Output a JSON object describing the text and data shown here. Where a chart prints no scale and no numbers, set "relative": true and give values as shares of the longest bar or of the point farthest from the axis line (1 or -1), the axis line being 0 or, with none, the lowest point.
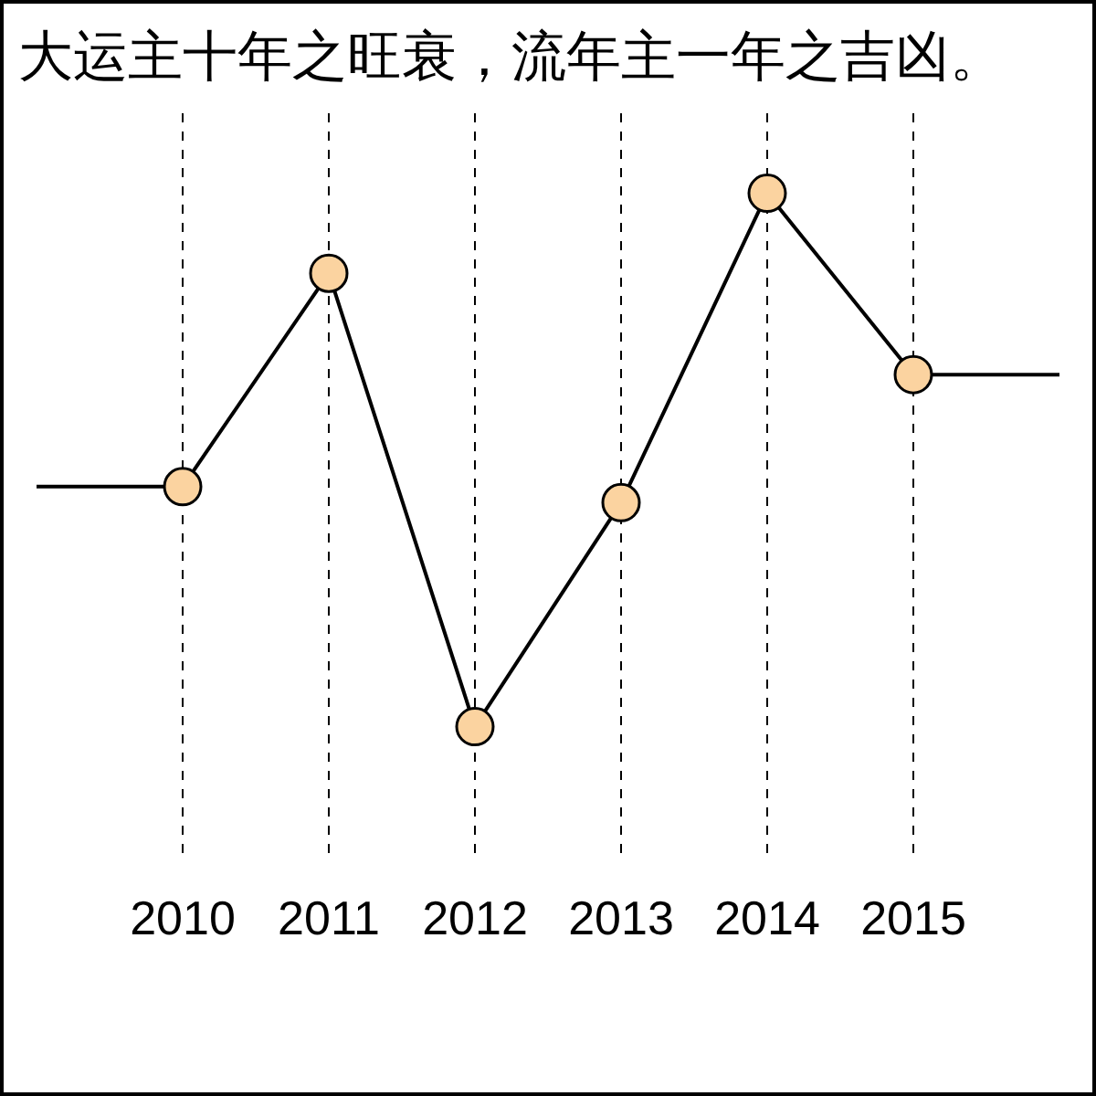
{
  "chart_data": {
    "type": "line",
    "title": "大运主十年之旺衰，流年主一年之吉凶。",
    "categories": [
      null,
      "2010",
      "2011",
      "2012",
      "2013",
      "2014",
      "2015",
      null
    ],
    "relative": true,
    "series": [
      {
        "color": "#fbd3a0",
        "values": [
          0.45,
          0.45,
          0.85,
          0,
          0.42,
          1,
          0.66,
          0.66
        ]
      }
    ],
    "grid": "x",
    "marker": "circle",
    "legend": false
  }
}
